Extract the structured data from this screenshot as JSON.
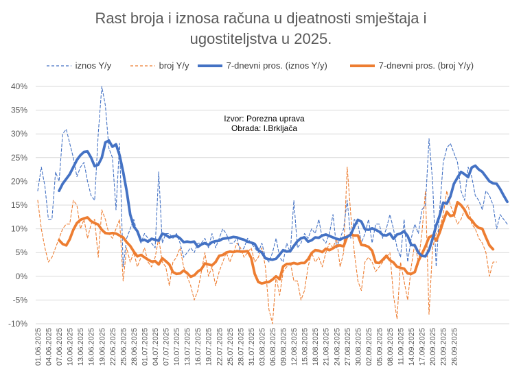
{
  "chart_data": {
    "type": "line",
    "title": "Rast broja i iznosa računa u djeatnosti smještaja i ugostiteljstva u 2025.",
    "title_line1": "Rast broja i iznosa računa u djeatnosti smještaja i",
    "title_line2": "ugostiteljstva u 2025.",
    "ylim": [
      -10,
      40
    ],
    "yticks": [
      -10,
      -5,
      0,
      5,
      10,
      15,
      20,
      25,
      30,
      35,
      40
    ],
    "ytick_labels": [
      "-10%",
      "-5%",
      "0%",
      "5%",
      "10%",
      "15%",
      "20%",
      "25%",
      "30%",
      "35%",
      "40%"
    ],
    "xtick_labels": [
      "01.06.2025",
      "04.06.2025",
      "07.06.2025",
      "10.06.2025",
      "13.06.2025",
      "16.06.2025",
      "19.06.2025",
      "22.06.2025",
      "25.06.2025",
      "28.06.2025",
      "01.07.2025",
      "04.07.2025",
      "07.07.2025",
      "10.07.2025",
      "13.07.2025",
      "16.07.2025",
      "19.07.2025",
      "22.07.2025",
      "25.07.2025",
      "28.07.2025",
      "31.07.2025",
      "03.08.2025",
      "06.08.2025",
      "09.08.2025",
      "12.08.2025",
      "15.08.2025",
      "18.08.2025",
      "21.08.2025",
      "24.08.2025",
      "27.08.2025",
      "30.08.2025",
      "02.09.2025",
      "05.09.2025",
      "08.09.2025",
      "11.09.2025",
      "14.09.2025",
      "17.09.2025",
      "20.09.2025",
      "23.09.2025",
      "26.09.2025"
    ],
    "annotation_line1": "Izvor: Porezna uprava",
    "annotation_line2": "Obrada: I.Brkljača",
    "colors": {
      "blue": "#4472C4",
      "orange": "#ED7D31"
    },
    "series": [
      {
        "name": "iznos Y/y",
        "style": "dashed",
        "color": "#4472C4",
        "values": [
          18,
          23,
          19,
          12,
          12,
          22,
          20,
          30,
          31,
          28,
          25,
          21,
          23,
          24,
          20,
          17,
          16,
          30,
          40,
          36,
          27,
          25,
          14,
          28,
          2,
          8,
          10,
          12,
          9,
          7,
          9,
          8,
          7,
          6,
          22,
          7,
          9,
          9,
          8,
          9,
          7,
          4,
          5,
          6,
          5,
          7,
          7,
          8,
          6,
          9,
          6,
          8,
          10,
          9,
          7,
          7,
          8,
          5,
          6,
          8,
          7,
          6,
          5,
          7,
          4,
          3,
          5,
          8,
          4,
          3,
          7,
          5,
          16,
          6,
          7,
          9,
          8,
          10,
          9,
          12,
          8,
          7,
          9,
          13,
          6,
          8,
          10,
          16,
          8,
          12,
          11,
          7,
          9,
          12,
          7,
          11,
          11,
          8,
          10,
          13,
          10,
          6,
          4,
          12,
          3,
          8,
          11,
          9,
          14,
          15,
          29,
          20,
          2,
          14,
          24,
          27,
          28,
          26,
          24,
          18,
          16,
          23,
          21,
          17,
          16,
          14,
          18,
          17,
          15,
          10,
          13,
          12,
          11
        ]
      },
      {
        "name": "broj Y/y",
        "style": "dashed",
        "color": "#ED7D31",
        "values": [
          16,
          10,
          6,
          3,
          4,
          6,
          8,
          10,
          11,
          11,
          16,
          15,
          10,
          12,
          8,
          11,
          12,
          4,
          14,
          12,
          9,
          8,
          10,
          12,
          -1,
          6,
          3,
          5,
          2,
          4,
          6,
          3,
          2,
          4,
          8,
          3,
          2,
          -2,
          3,
          4,
          6,
          2,
          0,
          -2,
          -5,
          -3,
          1,
          5,
          0,
          2,
          -2,
          1,
          3,
          5,
          3,
          5,
          7,
          6,
          4,
          5,
          6,
          3,
          4,
          6,
          2,
          -7,
          -10,
          0,
          -4,
          1,
          2,
          3,
          -1,
          -1,
          -5,
          -3,
          2,
          5,
          3,
          4,
          2,
          5,
          7,
          6,
          8,
          2,
          5,
          23,
          13,
          5,
          -1,
          -3,
          3,
          4,
          3,
          1,
          2,
          3,
          4,
          5,
          -4,
          -9,
          3,
          -1,
          -5,
          2,
          7,
          3,
          9,
          18,
          -8,
          6,
          9,
          10,
          13,
          18,
          15,
          13,
          11,
          12,
          14,
          15,
          11,
          10,
          8,
          7,
          5,
          0,
          3,
          3
        ]
      },
      {
        "name": "7-dnevni pros. (iznos Y/y)",
        "style": "solid",
        "color": "#4472C4",
        "values": [
          null,
          null,
          null,
          null,
          null,
          null,
          18,
          19.5,
          20.5,
          21.5,
          23,
          24.5,
          25.5,
          26.2,
          26.3,
          25,
          23.2,
          23.5,
          25,
          28.2,
          28.6,
          27.3,
          27.8,
          25.5,
          22,
          18,
          13,
          10.5,
          9.5,
          7.5,
          7.7,
          7.3,
          7.9,
          7.7,
          7.5,
          9,
          8.7,
          8.2,
          8.4,
          8.5,
          8,
          7.2,
          7.3,
          7.2,
          7.3,
          6.2,
          6.7,
          7,
          6.6,
          7.2,
          7.4,
          7.5,
          7.9,
          8,
          8.1,
          8.3,
          8.2,
          7.9,
          7.7,
          7.3,
          7.1,
          6.8,
          5.5,
          5,
          3.8,
          3.6,
          3.5,
          3.7,
          4.6,
          5.5,
          5.2,
          5.3,
          6.4,
          7.4,
          8,
          8.2,
          7.3,
          7.6,
          8.2,
          8.1,
          8.6,
          8.8,
          8.5,
          8.2,
          7.9,
          7.7,
          8.1,
          8.3,
          8.8,
          10.5,
          11.9,
          11.5,
          9.9,
          9.8,
          10.1,
          9.8,
          9.4,
          8.7,
          8.6,
          9,
          7.9,
          8.8,
          9,
          9.5,
          8.5,
          6.6,
          6.5,
          5,
          4.3,
          4.2,
          5.5,
          7.9,
          10.7,
          12.8,
          15.5,
          15.3,
          16.8,
          19.5,
          20.8,
          22,
          21.5,
          20.9,
          22.9,
          23.3,
          22.5,
          22,
          21,
          20,
          19.6,
          19.5,
          18.4,
          17,
          15.7
        ]
      },
      {
        "name": "7-dnevni pros. (broj Y/y)",
        "style": "solid",
        "color": "#ED7D31",
        "values": [
          null,
          null,
          null,
          null,
          null,
          null,
          7.6,
          6.8,
          6.5,
          7.8,
          9.8,
          11.2,
          11.9,
          12.2,
          12.4,
          11.6,
          11.2,
          10.9,
          9.8,
          9.1,
          9,
          9.1,
          9,
          8.6,
          8.2,
          7.2,
          6.4,
          5.2,
          4.2,
          4.5,
          4,
          3.5,
          3.1,
          3.2,
          2.5,
          3.8,
          3.2,
          2.5,
          0.9,
          0.5,
          0.6,
          1.2,
          0.7,
          -0.1,
          0.2,
          1,
          1.5,
          2.7,
          2.5,
          2.3,
          3,
          4.3,
          4.5,
          5,
          5.2,
          5.1,
          5.3,
          5.2,
          5.2,
          5.3,
          3.9,
          0.5,
          -1.2,
          -1.5,
          -1.3,
          -1.2,
          -0.7,
          0,
          -0.6,
          2.1,
          2.6,
          2.6,
          2.8,
          2.6,
          2.8,
          2.8,
          3.6,
          4.9,
          5.5,
          5.4,
          5.1,
          5.8,
          5.5,
          5.9,
          6.4,
          6.5,
          6.3,
          8.4,
          8.8,
          8.6,
          8.6,
          6.6,
          6.5,
          6.2,
          5.4,
          2.9,
          2.8,
          3.5,
          4.3,
          3.4,
          2.9,
          2,
          1.8,
          1.6,
          0.6,
          0.5,
          0.9,
          3.2,
          4.7,
          6.3,
          8.2,
          8.6,
          7.5,
          9.2,
          11.5,
          13.6,
          12.7,
          12.9,
          15.6,
          15,
          14,
          12.5,
          11.8,
          10.8,
          10.2,
          10,
          8.2,
          6.5,
          5.7
        ]
      }
    ],
    "legend": [
      "iznos Y/y",
      "broj Y/y",
      "7-dnevni pros. (iznos Y/y)",
      "7-dnevni pros. (broj Y/y)"
    ]
  }
}
